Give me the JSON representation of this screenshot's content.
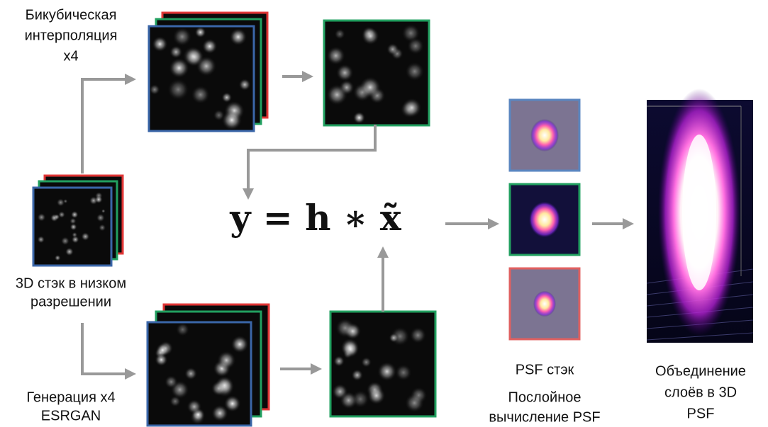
{
  "labels": {
    "bicubic": [
      "Бикубическая",
      "интерполяция",
      "x4"
    ],
    "lowres": [
      "3D стэк в низком",
      "разрешении"
    ],
    "esrgan": [
      "Генерация x4",
      "ESRGAN"
    ],
    "formula": "y = h ∗ x̃",
    "psf_stack": "PSF стэк",
    "layerwise": [
      "Послойное",
      "вычисление PSF"
    ],
    "merge": [
      "Объединение",
      "слоёв в 3D",
      "PSF"
    ]
  }
}
